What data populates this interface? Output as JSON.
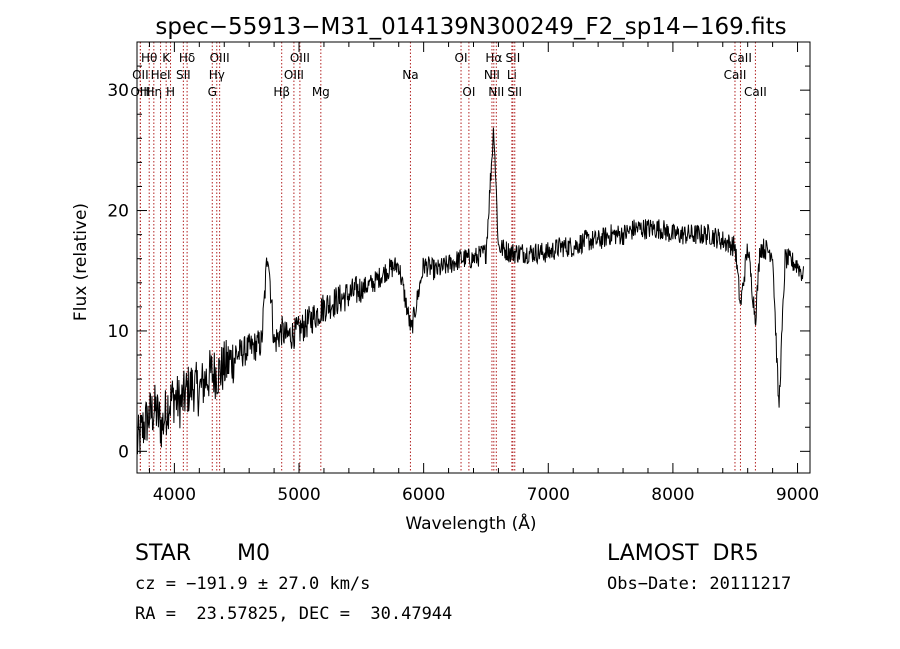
{
  "chart_data": {
    "type": "line",
    "title": "spec−55913−M31_014139N300249_F2_sp14−169.fits",
    "xlabel": "Wavelength (Å)",
    "ylabel": "Flux (relative)",
    "xlim": [
      3700,
      9100
    ],
    "ylim": [
      -1.8,
      34
    ],
    "xticks": [
      4000,
      5000,
      6000,
      7000,
      8000,
      9000
    ],
    "yticks": [
      0,
      10,
      20,
      30
    ],
    "grid": false,
    "line_color": "#000000",
    "marker_color": "#b22222",
    "spectrum": {
      "x": [
        3700,
        3750,
        3800,
        3850,
        3900,
        3950,
        4000,
        4050,
        4100,
        4150,
        4200,
        4250,
        4300,
        4350,
        4400,
        4450,
        4500,
        4600,
        4700,
        4750,
        4800,
        4861,
        4900,
        5000,
        5100,
        5200,
        5300,
        5400,
        5500,
        5600,
        5700,
        5800,
        5900,
        6000,
        6100,
        6200,
        6300,
        6400,
        6500,
        6563,
        6600,
        6700,
        6800,
        6900,
        7000,
        7100,
        7200,
        7300,
        7400,
        7500,
        7600,
        7700,
        7800,
        7900,
        8000,
        8100,
        8200,
        8300,
        8400,
        8500,
        8542,
        8600,
        8662,
        8700,
        8800,
        8850,
        8900,
        9000,
        9050
      ],
      "y": [
        0.5,
        2,
        3,
        3.5,
        2,
        4,
        4.5,
        4,
        5,
        5.5,
        5,
        6,
        6.5,
        6.5,
        7,
        7.5,
        8,
        8.5,
        9,
        17,
        9,
        10,
        9.5,
        10,
        11,
        12,
        12.5,
        13,
        13.5,
        14,
        15,
        15.5,
        10,
        15.5,
        15,
        15.5,
        16,
        16,
        16.5,
        27,
        17,
        16.5,
        16.5,
        16.5,
        16.5,
        17,
        17,
        17.5,
        17.5,
        18,
        18,
        18.5,
        18.5,
        18.5,
        18,
        18,
        18,
        18,
        17.5,
        17,
        12,
        17,
        11,
        17,
        16.5,
        3.5,
        16,
        15.5,
        14.5
      ]
    },
    "lines": [
      {
        "label": "Hθ",
        "wavelength": 3798,
        "row": 1
      },
      {
        "label": "OII",
        "wavelength": 3727,
        "row": 2
      },
      {
        "label": "OIII",
        "wavelength": 3727,
        "row": 3
      },
      {
        "label": "Hη",
        "wavelength": 3835,
        "row": 3
      },
      {
        "label": "K",
        "wavelength": 3934,
        "row": 1
      },
      {
        "label": "HeI",
        "wavelength": 3889,
        "row": 2
      },
      {
        "label": "H",
        "wavelength": 3969,
        "row": 3
      },
      {
        "label": "Hδ",
        "wavelength": 4102,
        "row": 1
      },
      {
        "label": "SII",
        "wavelength": 4072,
        "row": 2
      },
      {
        "label": "OIII",
        "wavelength": 4363,
        "row": 1
      },
      {
        "label": "Hγ",
        "wavelength": 4340,
        "row": 2
      },
      {
        "label": "G",
        "wavelength": 4304,
        "row": 3
      },
      {
        "label": "Hβ",
        "wavelength": 4861,
        "row": 3
      },
      {
        "label": "OIII",
        "wavelength": 5007,
        "row": 1
      },
      {
        "label": "OIII",
        "wavelength": 4959,
        "row": 2
      },
      {
        "label": "Mg",
        "wavelength": 5175,
        "row": 3
      },
      {
        "label": "Na",
        "wavelength": 5894,
        "row": 2
      },
      {
        "label": "OI",
        "wavelength": 6300,
        "row": 1
      },
      {
        "label": "OI",
        "wavelength": 6363,
        "row": 3
      },
      {
        "label": "Hα",
        "wavelength": 6563,
        "row": 1
      },
      {
        "label": "SII",
        "wavelength": 6716,
        "row": 1
      },
      {
        "label": "NII",
        "wavelength": 6548,
        "row": 2
      },
      {
        "label": "Li",
        "wavelength": 6708,
        "row": 2
      },
      {
        "label": "NII",
        "wavelength": 6583,
        "row": 3
      },
      {
        "label": "SII",
        "wavelength": 6731,
        "row": 3
      },
      {
        "label": "CaII",
        "wavelength": 8542,
        "row": 1
      },
      {
        "label": "CaII",
        "wavelength": 8498,
        "row": 2
      },
      {
        "label": "CaII",
        "wavelength": 8662,
        "row": 3
      }
    ]
  },
  "info": {
    "class_label": "STAR",
    "subclass_label": "M0",
    "survey": "LAMOST  DR5",
    "cz_line": "cz = −191.9 ± 27.0 km/s",
    "obs_date": "Obs−Date: 20111217",
    "coords": "RA =  23.57825, DEC =  30.47944"
  }
}
